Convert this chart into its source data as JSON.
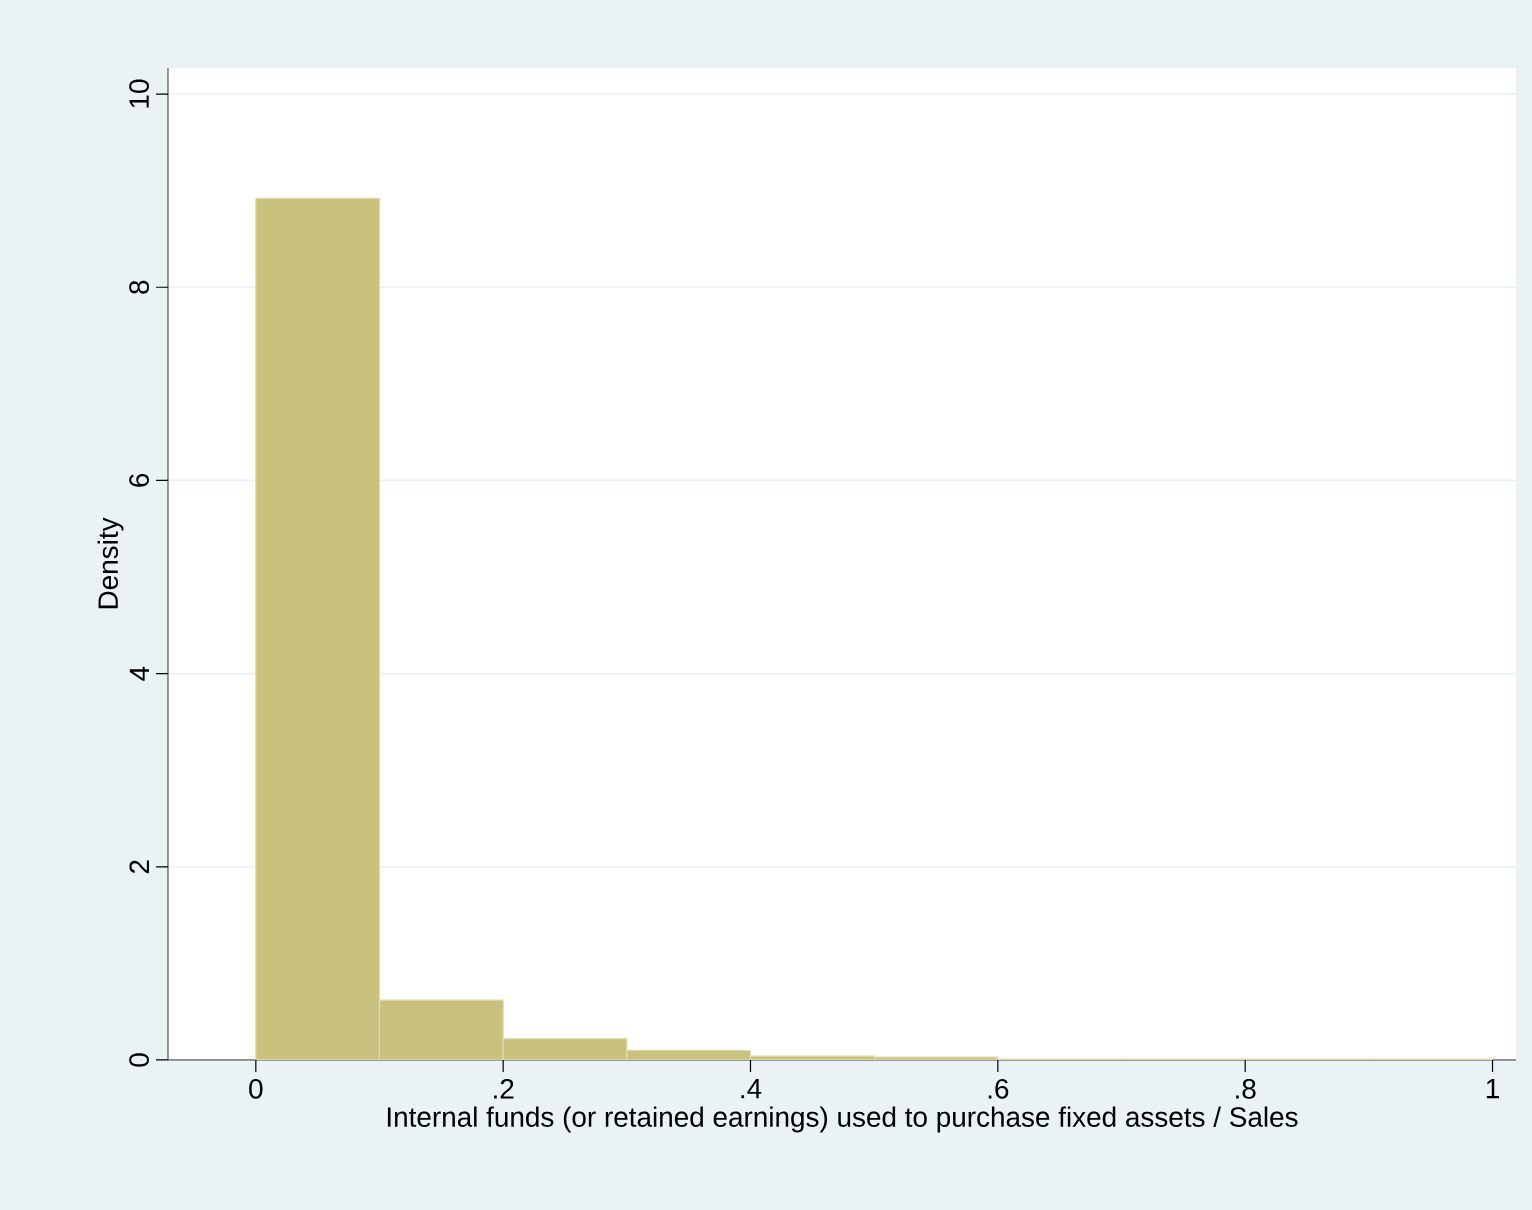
{
  "chart_data": {
    "type": "histogram",
    "xlabel": "Internal funds (or retained earnings) used to purchase fixed assets / Sales",
    "ylabel": "Density",
    "bins": [
      0,
      0.1,
      0.2,
      0.3,
      0.4,
      0.5,
      0.6,
      0.7,
      0.8,
      0.9,
      1.0
    ],
    "values": [
      8.92,
      0.62,
      0.22,
      0.1,
      0.04,
      0.03,
      0.01,
      0.01,
      0.01,
      0.01
    ],
    "color": "#c9c27f",
    "xlim": [
      -0.071,
      1.019
    ],
    "ylim": [
      0,
      10.27
    ],
    "xticks": [
      0,
      {
        "value": 0.2,
        "label": ".2"
      },
      {
        "value": 0.4,
        "label": ".4"
      },
      {
        "value": 0.6,
        "label": ".6"
      },
      {
        "value": 0.8,
        "label": ".8"
      },
      1
    ],
    "yticks": [
      0,
      2,
      4,
      6,
      8,
      10
    ],
    "grid": "y"
  }
}
